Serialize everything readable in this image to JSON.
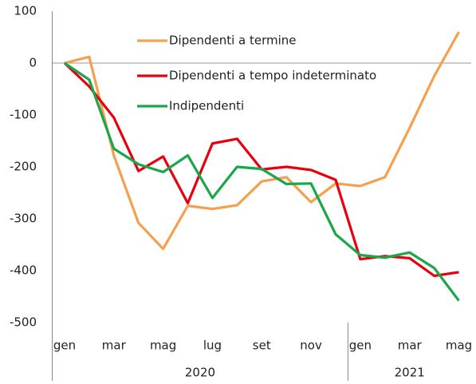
{
  "chart_data": {
    "type": "line",
    "categories": [
      "gen",
      null,
      "mar",
      null,
      "mag",
      null,
      "lug",
      null,
      "set",
      null,
      "nov",
      null,
      "gen",
      null,
      "mar",
      null,
      "mag"
    ],
    "years": [
      "2020",
      "2021"
    ],
    "ylim": [
      -500,
      100
    ],
    "yticks": [
      -500,
      -400,
      -300,
      -200,
      -100,
      0,
      100
    ],
    "series": [
      {
        "name": "Dipendenti a termine",
        "color": "#f4a04f",
        "values": [
          0,
          12,
          -178,
          -308,
          -358,
          -275,
          -281,
          -274,
          -228,
          -220,
          -268,
          -232,
          -237,
          -220,
          -125,
          -25,
          60
        ]
      },
      {
        "name": "Dipendenti a tempo indeterminato",
        "color": "#e8000f",
        "values": [
          0,
          -45,
          -105,
          -208,
          -180,
          -270,
          -155,
          -146,
          -205,
          -200,
          -206,
          -225,
          -378,
          -372,
          -376,
          -410,
          -403
        ]
      },
      {
        "name": "Indipendenti",
        "color": "#1aa64a",
        "values": [
          0,
          -32,
          -165,
          -195,
          -210,
          -178,
          -260,
          -200,
          -204,
          -233,
          -232,
          -330,
          -370,
          -375,
          -365,
          -395,
          -458
        ]
      }
    ]
  }
}
